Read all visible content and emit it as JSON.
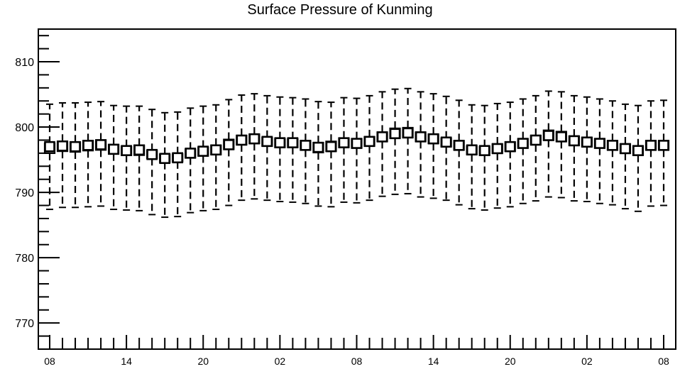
{
  "chart_data": {
    "type": "boxplot",
    "title": "Surface Pressure of Kunming",
    "xlabel": "",
    "ylabel": "",
    "ylim": [
      766,
      815
    ],
    "y_ticks": [
      770,
      780,
      790,
      800,
      810
    ],
    "x_tick_labels": [
      "08",
      "14",
      "20",
      "02",
      "08",
      "14",
      "20",
      "02",
      "08"
    ],
    "grid": false,
    "series": [
      {
        "q1": [
          796.0,
          796.3,
          796.2,
          796.4,
          796.5,
          795.9,
          795.7,
          795.7,
          795.2,
          794.6,
          794.7,
          795.3,
          795.6,
          795.8,
          796.6,
          797.3,
          797.5,
          797.1,
          796.9,
          796.9,
          796.5,
          796.1,
          796.3,
          796.9,
          796.8,
          797.1,
          797.8,
          798.3,
          798.4,
          797.8,
          797.5,
          797.0,
          796.5,
          795.8,
          795.7,
          796.0,
          796.3,
          796.8,
          797.3,
          798.0,
          797.8,
          797.2,
          797.0,
          796.8,
          796.5,
          796.0,
          795.7,
          796.5,
          796.5
        ],
        "median": [
          797.0,
          797.1,
          797.0,
          797.2,
          797.3,
          796.6,
          796.4,
          796.5,
          795.8,
          795.2,
          795.3,
          796.0,
          796.3,
          796.5,
          797.3,
          798.0,
          798.2,
          797.8,
          797.6,
          797.6,
          797.2,
          796.9,
          797.0,
          797.6,
          797.5,
          797.8,
          798.5,
          799.0,
          799.1,
          798.5,
          798.2,
          797.7,
          797.2,
          796.5,
          796.4,
          796.7,
          797.0,
          797.5,
          798.0,
          798.7,
          798.5,
          797.9,
          797.7,
          797.5,
          797.2,
          796.7,
          796.4,
          797.2,
          797.2
        ],
        "q3": [
          797.5,
          797.8,
          797.7,
          797.9,
          798.0,
          797.3,
          797.0,
          797.2,
          796.4,
          795.8,
          795.9,
          796.6,
          796.9,
          797.2,
          798.1,
          798.7,
          798.9,
          798.4,
          798.2,
          798.2,
          797.9,
          797.6,
          797.8,
          798.3,
          798.2,
          798.5,
          799.2,
          799.8,
          799.9,
          799.2,
          798.9,
          798.3,
          797.9,
          797.1,
          797.0,
          797.4,
          797.7,
          798.2,
          798.7,
          799.5,
          799.3,
          798.6,
          798.4,
          798.2,
          797.9,
          797.4,
          797.1,
          797.9,
          797.9
        ],
        "whisker_low": [
          787.4,
          787.7,
          787.7,
          787.8,
          787.9,
          787.4,
          787.3,
          787.2,
          786.6,
          786.2,
          786.3,
          786.9,
          787.2,
          787.4,
          788.0,
          788.8,
          789.0,
          788.8,
          788.6,
          788.5,
          788.3,
          787.9,
          787.8,
          788.5,
          788.4,
          788.8,
          789.4,
          789.7,
          789.8,
          789.3,
          789.1,
          788.8,
          788.1,
          787.5,
          787.3,
          787.6,
          787.8,
          788.3,
          788.7,
          789.3,
          789.2,
          788.7,
          788.6,
          788.3,
          788.1,
          787.5,
          787.1,
          787.9,
          788.0
        ],
        "whisker_high": [
          803.5,
          803.7,
          803.7,
          803.8,
          803.9,
          803.3,
          803.2,
          803.2,
          802.7,
          802.2,
          802.3,
          802.9,
          803.2,
          803.4,
          804.2,
          804.9,
          805.1,
          804.8,
          804.6,
          804.5,
          804.3,
          803.9,
          803.8,
          804.5,
          804.4,
          804.8,
          805.4,
          805.8,
          805.9,
          805.4,
          805.1,
          804.7,
          804.1,
          803.4,
          803.3,
          803.6,
          803.8,
          804.3,
          804.8,
          805.5,
          805.4,
          804.8,
          804.6,
          804.3,
          804.0,
          803.5,
          803.3,
          804.0,
          804.1
        ]
      }
    ]
  }
}
